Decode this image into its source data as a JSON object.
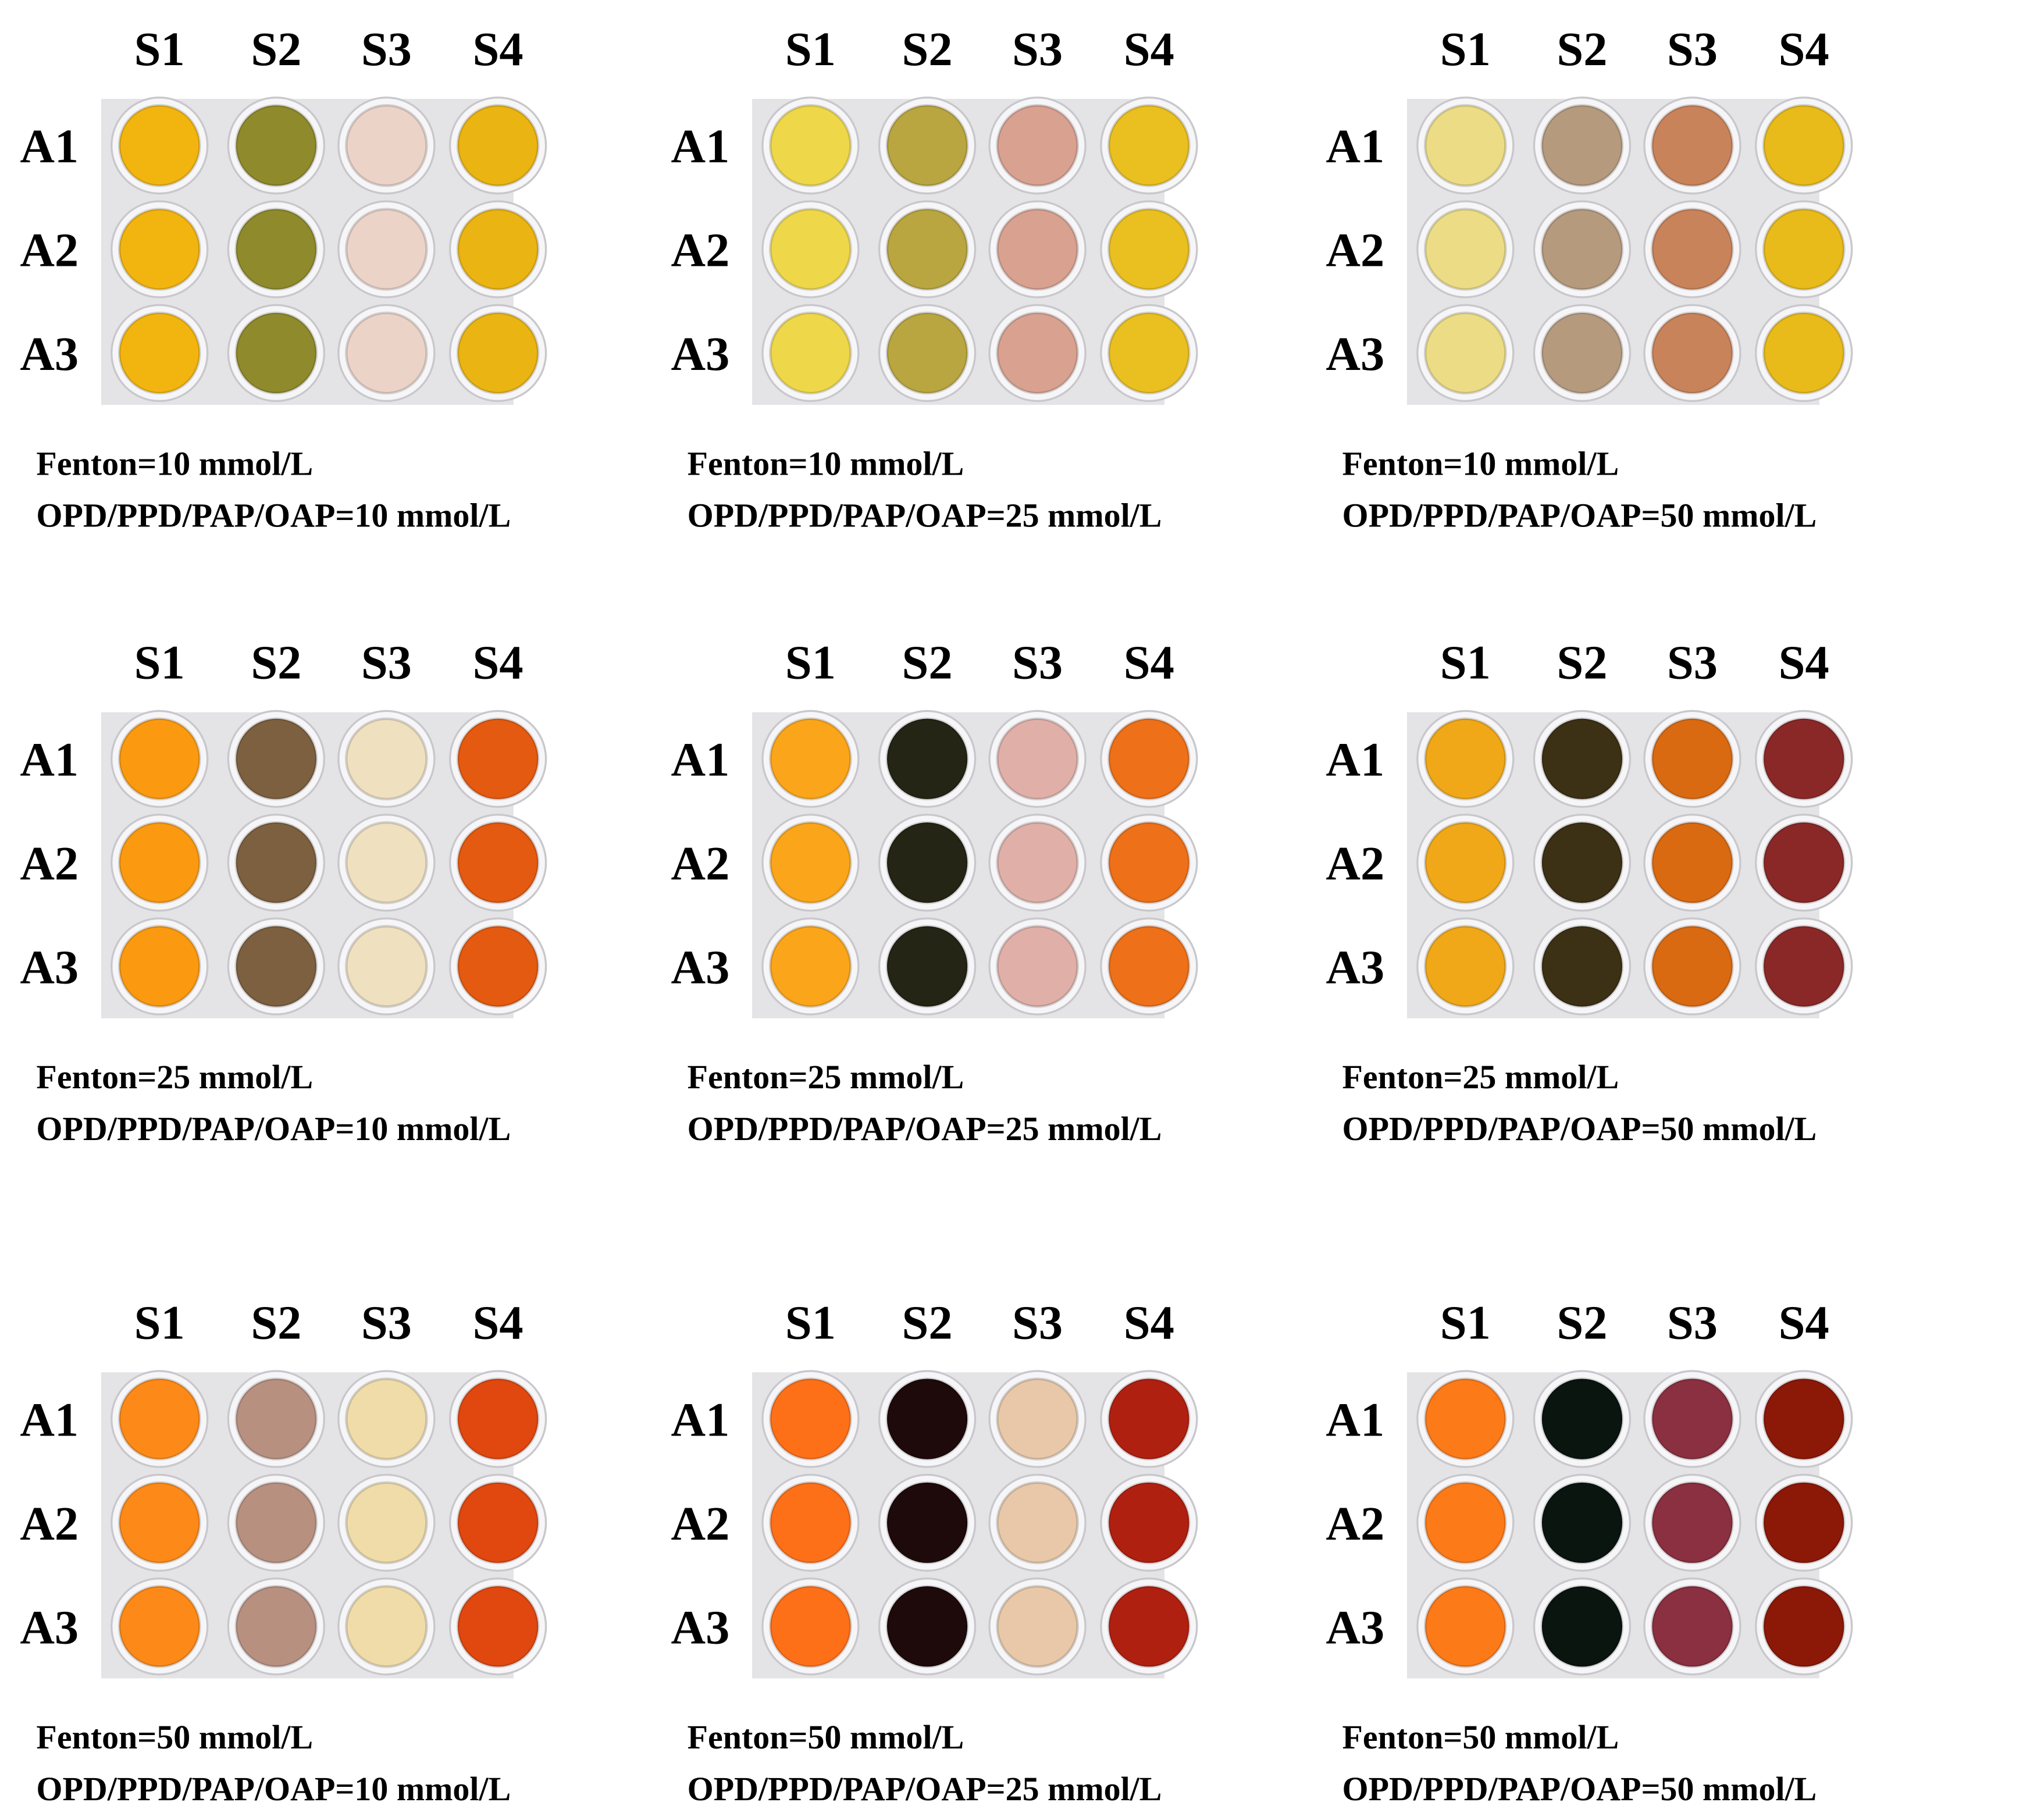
{
  "panels": [
    {
      "columns": [
        "S1",
        "S2",
        "S3",
        "S4"
      ],
      "rows": [
        "A1",
        "A2",
        "A3"
      ],
      "caption": [
        "Fenton=10 mmol/L",
        "OPD/PPD/PAP/OAP=10 mmol/L"
      ]
    },
    {
      "columns": [
        "S1",
        "S2",
        "S3",
        "S4"
      ],
      "rows": [
        "A1",
        "A2",
        "A3"
      ],
      "caption": [
        "Fenton=10 mmol/L",
        "OPD/PPD/PAP/OAP=25 mmol/L"
      ]
    },
    {
      "columns": [
        "S1",
        "S2",
        "S3",
        "S4"
      ],
      "rows": [
        "A1",
        "A2",
        "A3"
      ],
      "caption": [
        "Fenton=10 mmol/L",
        "OPD/PPD/PAP/OAP=50 mmol/L"
      ]
    },
    {
      "columns": [
        "S1",
        "S2",
        "S3",
        "S4"
      ],
      "rows": [
        "A1",
        "A2",
        "A3"
      ],
      "caption": [
        "Fenton=25 mmol/L",
        "OPD/PPD/PAP/OAP=10 mmol/L"
      ]
    },
    {
      "columns": [
        "S1",
        "S2",
        "S3",
        "S4"
      ],
      "rows": [
        "A1",
        "A2",
        "A3"
      ],
      "caption": [
        "Fenton=25 mmol/L",
        "OPD/PPD/PAP/OAP=25 mmol/L"
      ]
    },
    {
      "columns": [
        "S1",
        "S2",
        "S3",
        "S4"
      ],
      "rows": [
        "A1",
        "A2",
        "A3"
      ],
      "caption": [
        "Fenton=25 mmol/L",
        "OPD/PPD/PAP/OAP=50 mmol/L"
      ]
    },
    {
      "columns": [
        "S1",
        "S2",
        "S3",
        "S4"
      ],
      "rows": [
        "A1",
        "A2",
        "A3"
      ],
      "caption": [
        "Fenton=50 mmol/L",
        "OPD/PPD/PAP/OAP=10 mmol/L"
      ]
    },
    {
      "columns": [
        "S1",
        "S2",
        "S3",
        "S4"
      ],
      "rows": [
        "A1",
        "A2",
        "A3"
      ],
      "caption": [
        "Fenton=50 mmol/L",
        "OPD/PPD/PAP/OAP=25 mmol/L"
      ]
    },
    {
      "columns": [
        "S1",
        "S2",
        "S3",
        "S4"
      ],
      "rows": [
        "A1",
        "A2",
        "A3"
      ],
      "caption": [
        "Fenton=50 mmol/L",
        "OPD/PPD/PAP/OAP=50 mmol/L"
      ]
    }
  ]
}
